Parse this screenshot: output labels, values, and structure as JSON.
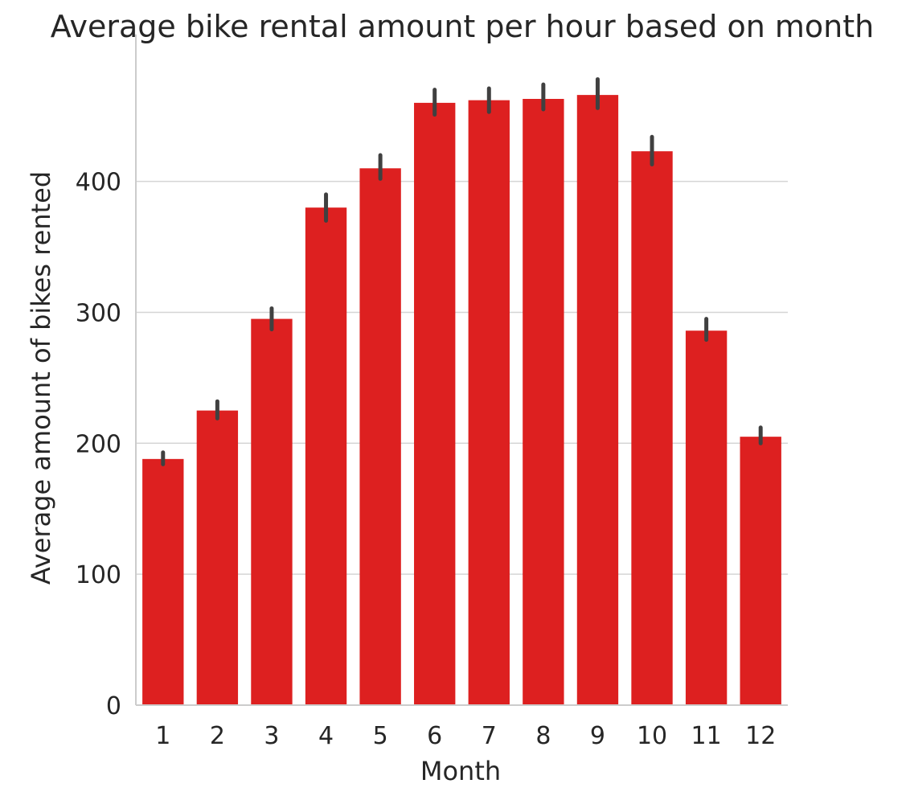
{
  "chart_data": {
    "type": "bar",
    "title": "Average bike rental amount per hour based on month",
    "xlabel": "Month",
    "ylabel": "Average amount of bikes rented",
    "categories": [
      "1",
      "2",
      "3",
      "4",
      "5",
      "6",
      "7",
      "8",
      "9",
      "10",
      "11",
      "12"
    ],
    "values": [
      188,
      225,
      295,
      380,
      410,
      460,
      462,
      463,
      466,
      423,
      286,
      205
    ],
    "error_low": [
      184,
      219,
      287,
      370,
      402,
      451,
      453,
      455,
      456,
      413,
      279,
      200
    ],
    "error_high": [
      193,
      232,
      303,
      390,
      420,
      470,
      471,
      474,
      478,
      434,
      295,
      212
    ],
    "ylim": [
      0,
      500
    ],
    "yticks": [
      0,
      100,
      200,
      300,
      400
    ],
    "grid": true,
    "legend": "none",
    "bar_color": "#dd2020",
    "error_color": "#404040",
    "grid_color": "#d5d5d5",
    "axis_color": "#cccccc",
    "text_color": "#262626"
  }
}
